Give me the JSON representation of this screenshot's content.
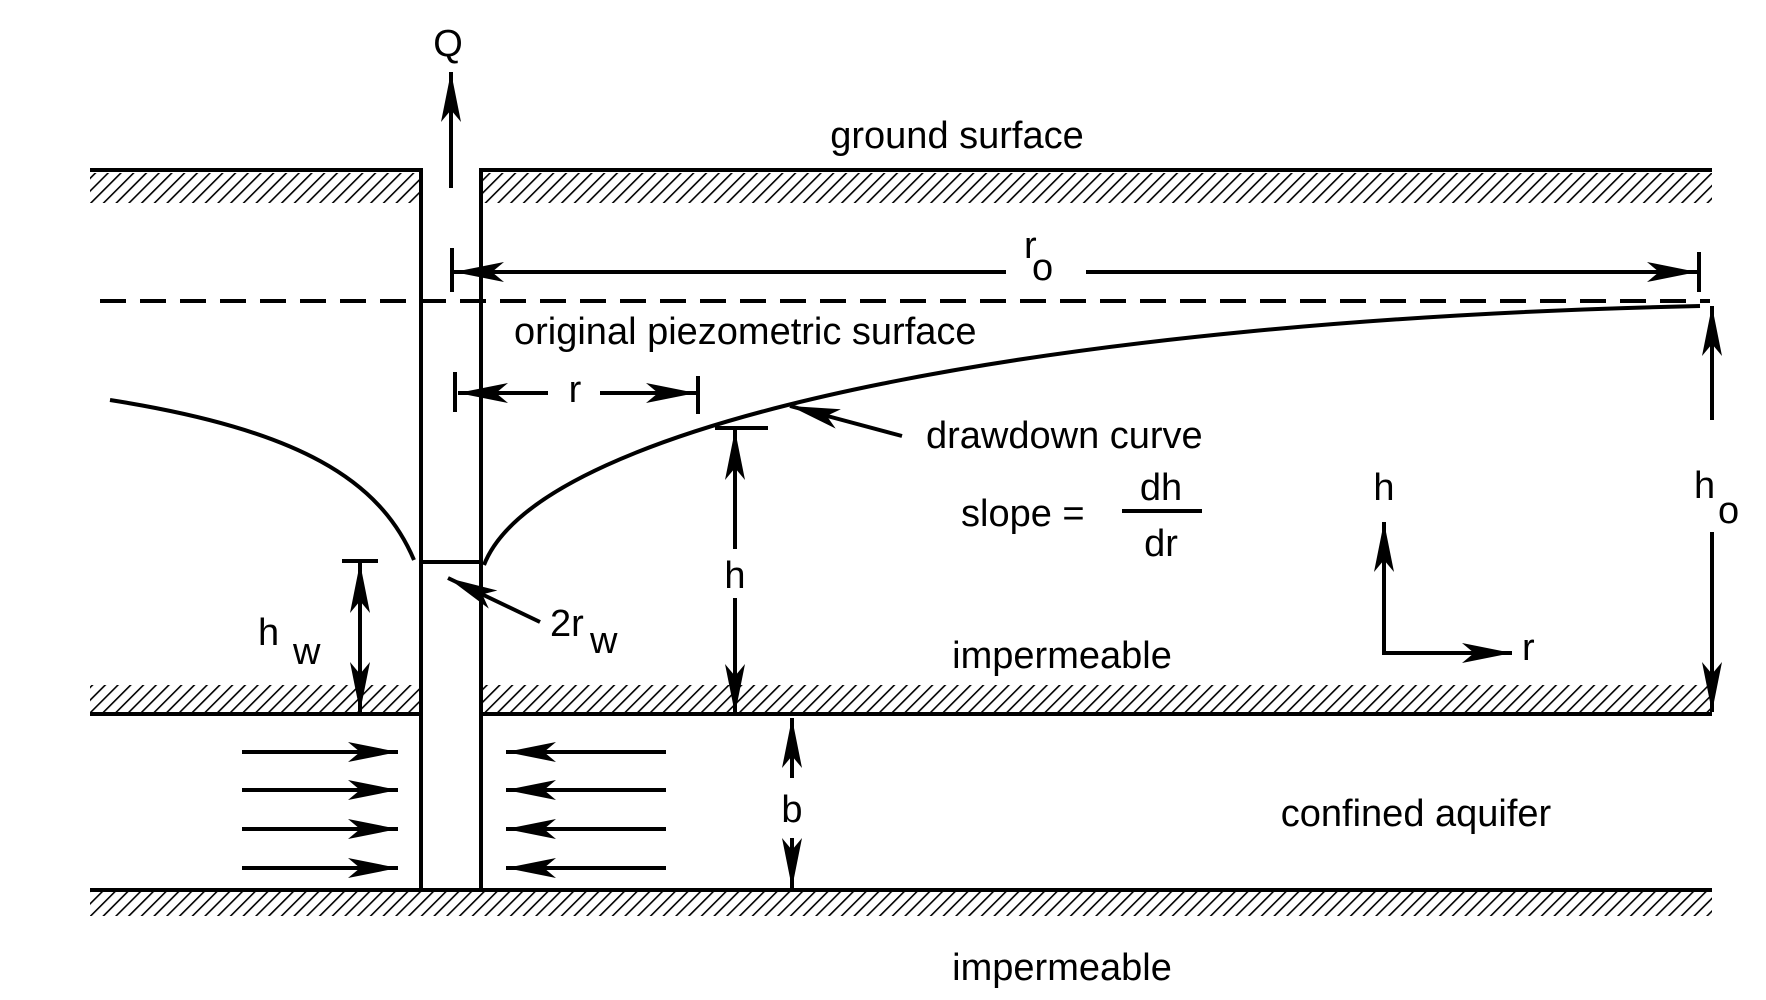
{
  "labels": {
    "flow": "Q",
    "ground_surface": "ground surface",
    "r0_base": "r",
    "r0_sub": "o",
    "piezometric": "original piezometric surface",
    "r": "r",
    "drawdown_curve": "drawdown curve",
    "slope_prefix": "slope =",
    "slope_num": "dh",
    "slope_den": "dr",
    "h": "h",
    "axis_h": "h",
    "axis_r": "r",
    "h0_base": "h",
    "h0_sub": "o",
    "hw_base": "h",
    "hw_sub": "w",
    "rw_base": "2r",
    "rw_sub": "w",
    "impermeable_upper": "impermeable",
    "b": "b",
    "confined_aquifer": "confined aquifer",
    "impermeable_lower": "impermeable"
  }
}
